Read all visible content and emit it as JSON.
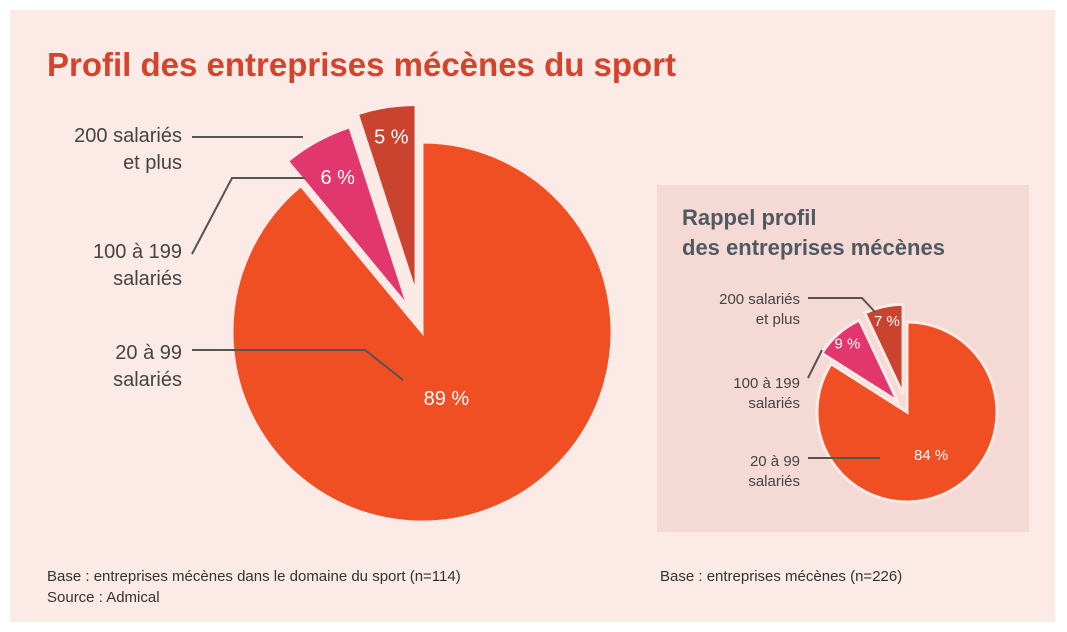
{
  "title": "Profil des entreprises mécènes du sport",
  "chart_data": [
    {
      "type": "pie",
      "categories": [
        "20 à 99\nsalariés",
        "100 à 199\nsalariés",
        "200 salariés\net plus"
      ],
      "values": [
        89,
        6,
        5
      ],
      "value_labels": [
        "89 %",
        "6 %",
        "5 %"
      ],
      "colors": [
        "#f04e23",
        "#e2366f",
        "#c9432f"
      ],
      "footnote": "Base : entreprises mécènes dans le domaine du sport (n=114)\nSource : Admical"
    },
    {
      "type": "pie",
      "title": "Rappel profil\ndes entreprises mécènes",
      "categories": [
        "20 à 99\nsalariés",
        "100 à 199\nsalariés",
        "200 salariés\net plus"
      ],
      "values": [
        84,
        9,
        7
      ],
      "value_labels": [
        "84 %",
        "9 %",
        "7 %"
      ],
      "colors": [
        "#f04e23",
        "#e2366f",
        "#c9432f"
      ],
      "footnote": "Base : entreprises mécènes (n=226)"
    }
  ]
}
